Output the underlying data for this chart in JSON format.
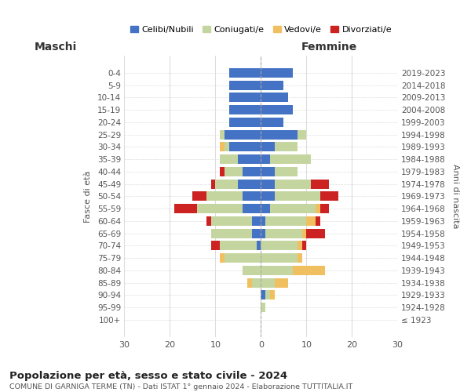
{
  "age_groups": [
    "0-4",
    "5-9",
    "10-14",
    "15-19",
    "20-24",
    "25-29",
    "30-34",
    "35-39",
    "40-44",
    "45-49",
    "50-54",
    "55-59",
    "60-64",
    "65-69",
    "70-74",
    "75-79",
    "80-84",
    "85-89",
    "90-94",
    "95-99",
    "100+"
  ],
  "birth_years": [
    "2019-2023",
    "2014-2018",
    "2009-2013",
    "2004-2008",
    "1999-2003",
    "1994-1998",
    "1989-1993",
    "1984-1988",
    "1979-1983",
    "1974-1978",
    "1969-1973",
    "1964-1968",
    "1959-1963",
    "1954-1958",
    "1949-1953",
    "1944-1948",
    "1939-1943",
    "1934-1938",
    "1929-1933",
    "1924-1928",
    "≤ 1923"
  ],
  "male": {
    "celibi": [
      7,
      7,
      7,
      7,
      7,
      8,
      7,
      5,
      4,
      5,
      4,
      4,
      2,
      2,
      1,
      0,
      0,
      0,
      0,
      0,
      0
    ],
    "coniugati": [
      0,
      0,
      0,
      0,
      0,
      1,
      1,
      4,
      4,
      5,
      8,
      10,
      9,
      9,
      8,
      8,
      4,
      2,
      0,
      0,
      0
    ],
    "vedovi": [
      0,
      0,
      0,
      0,
      0,
      0,
      1,
      0,
      0,
      0,
      0,
      0,
      0,
      0,
      0,
      1,
      0,
      1,
      0,
      0,
      0
    ],
    "divorziati": [
      0,
      0,
      0,
      0,
      0,
      0,
      0,
      0,
      1,
      1,
      3,
      5,
      1,
      0,
      2,
      0,
      0,
      0,
      0,
      0,
      0
    ]
  },
  "female": {
    "nubili": [
      7,
      5,
      6,
      7,
      5,
      8,
      3,
      2,
      3,
      3,
      3,
      2,
      1,
      1,
      0,
      0,
      0,
      0,
      1,
      0,
      0
    ],
    "coniugate": [
      0,
      0,
      0,
      0,
      0,
      2,
      5,
      9,
      5,
      8,
      10,
      10,
      9,
      8,
      8,
      8,
      7,
      3,
      1,
      1,
      0
    ],
    "vedove": [
      0,
      0,
      0,
      0,
      0,
      0,
      0,
      0,
      0,
      0,
      0,
      1,
      2,
      1,
      1,
      1,
      7,
      3,
      1,
      0,
      0
    ],
    "divorziate": [
      0,
      0,
      0,
      0,
      0,
      0,
      0,
      0,
      0,
      4,
      4,
      2,
      1,
      4,
      1,
      0,
      0,
      0,
      0,
      0,
      0
    ]
  },
  "colors": {
    "celibi": "#4472C4",
    "coniugati": "#C5D5A0",
    "vedovi": "#F0C060",
    "divorziati": "#CC2222"
  },
  "title": "Popolazione per età, sesso e stato civile - 2024",
  "subtitle": "COMUNE DI GARNIGA TERME (TN) - Dati ISTAT 1° gennaio 2024 - Elaborazione TUTTITALIA.IT",
  "xlabel_left": "Maschi",
  "xlabel_right": "Femmine",
  "ylabel_left": "Fasce di età",
  "ylabel_right": "Anni di nascita",
  "xlim": 30,
  "legend_labels": [
    "Celibi/Nubili",
    "Coniugati/e",
    "Vedovi/e",
    "Divorziati/e"
  ],
  "bg_color": "#ffffff",
  "grid_color": "#dddddd"
}
